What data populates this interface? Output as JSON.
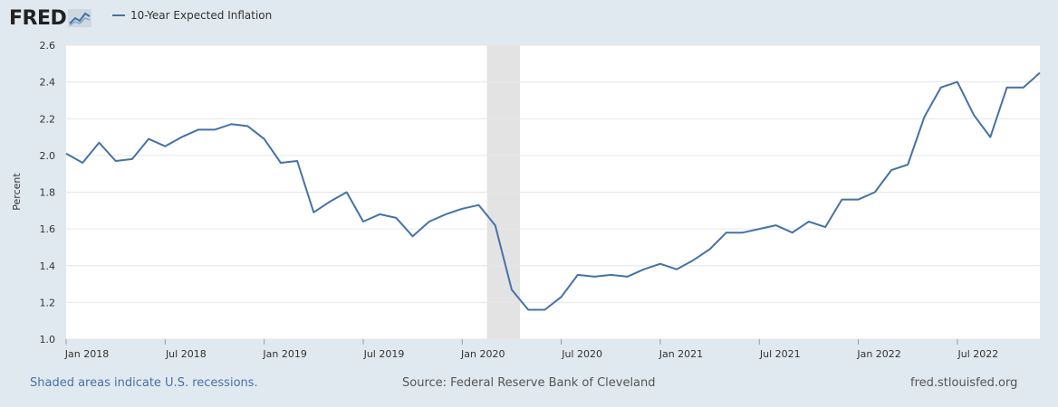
{
  "header": {
    "logo_text": "FRED",
    "legend_label": "10-Year Expected Inflation"
  },
  "footer": {
    "recession_note": "Shaded areas indicate U.S. recessions.",
    "source": "Source: Federal Reserve Bank of Cleveland",
    "site": "fred.stlouisfed.org"
  },
  "colors": {
    "series": "#4572a7",
    "background": "#e1e9f0",
    "plot_background": "#ffffff",
    "recession": "#e3e3e3",
    "grid": "#e6e6e6"
  },
  "chart_data": {
    "type": "line",
    "title": "",
    "xlabel": "",
    "ylabel": "Percent",
    "ylim": [
      1.0,
      2.6
    ],
    "yticks": [
      "1.0",
      "1.2",
      "1.4",
      "1.6",
      "1.8",
      "2.0",
      "2.2",
      "2.4",
      "2.6"
    ],
    "xticks": [
      {
        "label": "Jan 2018",
        "date": "2018-01"
      },
      {
        "label": "Jul 2018",
        "date": "2018-07"
      },
      {
        "label": "Jan 2019",
        "date": "2019-01"
      },
      {
        "label": "Jul 2019",
        "date": "2019-07"
      },
      {
        "label": "Jan 2020",
        "date": "2020-01"
      },
      {
        "label": "Jul 2020",
        "date": "2020-07"
      },
      {
        "label": "Jan 2021",
        "date": "2021-01"
      },
      {
        "label": "Jul 2021",
        "date": "2021-07"
      },
      {
        "label": "Jan 2022",
        "date": "2022-01"
      },
      {
        "label": "Jul 2022",
        "date": "2022-07"
      }
    ],
    "xlim": [
      "2018-01",
      "2022-12"
    ],
    "recessions": [
      {
        "start": "2020-03",
        "end": "2020-04"
      }
    ],
    "grid": true,
    "legend": "top-left",
    "series": [
      {
        "name": "10-Year Expected Inflation",
        "x": [
          "2018-01",
          "2018-02",
          "2018-03",
          "2018-04",
          "2018-05",
          "2018-06",
          "2018-07",
          "2018-08",
          "2018-09",
          "2018-10",
          "2018-11",
          "2018-12",
          "2019-01",
          "2019-02",
          "2019-03",
          "2019-04",
          "2019-05",
          "2019-06",
          "2019-07",
          "2019-08",
          "2019-09",
          "2019-10",
          "2019-11",
          "2019-12",
          "2020-01",
          "2020-02",
          "2020-03",
          "2020-04",
          "2020-05",
          "2020-06",
          "2020-07",
          "2020-08",
          "2020-09",
          "2020-10",
          "2020-11",
          "2020-12",
          "2021-01",
          "2021-02",
          "2021-03",
          "2021-04",
          "2021-05",
          "2021-06",
          "2021-07",
          "2021-08",
          "2021-09",
          "2021-10",
          "2021-11",
          "2021-12",
          "2022-01",
          "2022-02",
          "2022-03",
          "2022-04",
          "2022-05",
          "2022-06",
          "2022-07",
          "2022-08",
          "2022-09",
          "2022-10",
          "2022-11",
          "2022-12"
        ],
        "values": [
          2.01,
          1.96,
          2.07,
          1.97,
          1.98,
          2.09,
          2.05,
          2.1,
          2.14,
          2.14,
          2.17,
          2.16,
          2.09,
          1.96,
          1.97,
          1.69,
          1.75,
          1.8,
          1.64,
          1.68,
          1.66,
          1.56,
          1.64,
          1.68,
          1.71,
          1.73,
          1.62,
          1.27,
          1.16,
          1.16,
          1.23,
          1.35,
          1.34,
          1.35,
          1.34,
          1.38,
          1.41,
          1.38,
          1.43,
          1.49,
          1.58,
          1.58,
          1.6,
          1.62,
          1.58,
          1.64,
          1.61,
          1.76,
          1.76,
          1.8,
          1.92,
          1.95,
          2.21,
          2.37,
          2.4,
          2.22,
          2.1,
          2.37,
          2.37,
          2.45
        ]
      }
    ]
  }
}
